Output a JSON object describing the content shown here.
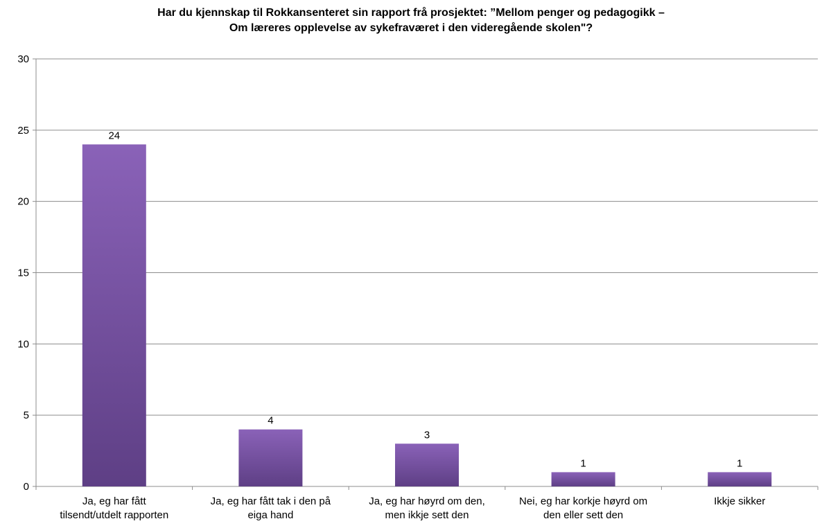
{
  "chart_data": {
    "type": "bar",
    "title_lines": [
      "Har du kjennskap til Rokkansenteret sin rapport frå prosjektet: ”Mellom penger og pedagogikk –",
      "Om læreres opplevelse av sykefraværet i den videregående skolen\"?"
    ],
    "categories": [
      [
        "Ja, eg har fått",
        "tilsendt/utdelt rapporten"
      ],
      [
        "Ja, eg har fått tak i den på",
        "eiga hand"
      ],
      [
        "Ja, eg har høyrd om den,",
        "men ikkje sett den"
      ],
      [
        "Nei, eg har korkje høyrd om",
        "den eller sett den"
      ],
      [
        "Ikkje sikker"
      ]
    ],
    "values": [
      24,
      4,
      3,
      1,
      1
    ],
    "data_labels": [
      "24",
      "4",
      "3",
      "1",
      "1"
    ],
    "ylim": [
      0,
      30
    ],
    "yticks": [
      0,
      5,
      10,
      15,
      20,
      25,
      30
    ],
    "grid": true,
    "legend": "none",
    "bar_color_light": "#8a62b8",
    "bar_color_dark": "#5e3f85"
  }
}
